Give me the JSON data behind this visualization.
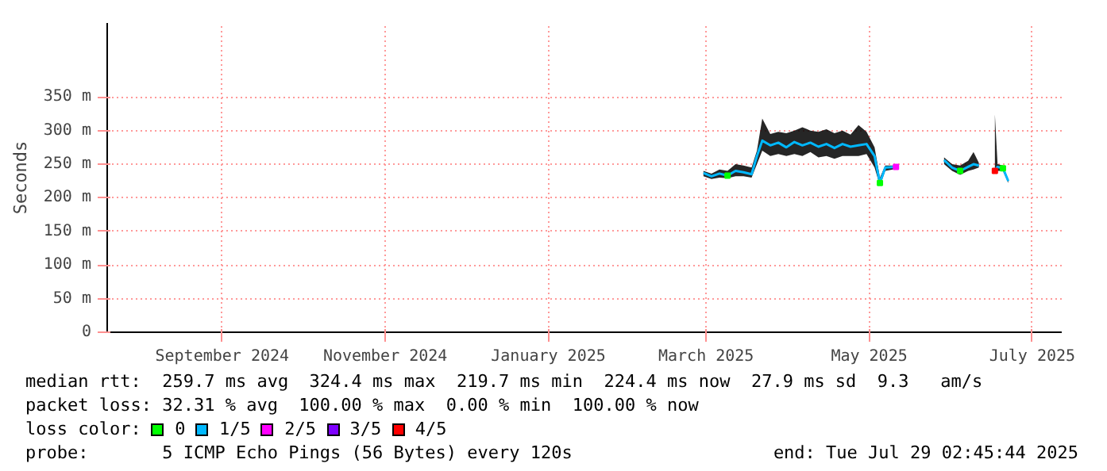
{
  "chart_data": {
    "type": "line",
    "ylabel": "Seconds",
    "legend_title": "loss color:",
    "legend": "bottom",
    "grid": true,
    "xlim": [
      "2024-07-20",
      "2025-07-12"
    ],
    "ylim": [
      0,
      460
    ],
    "xticks": [
      {
        "value": "2024-09-01",
        "label": "September 2024"
      },
      {
        "value": "2024-11-01",
        "label": "November 2024"
      },
      {
        "value": "2025-01-01",
        "label": "January 2025"
      },
      {
        "value": "2025-03-01",
        "label": "March 2025"
      },
      {
        "value": "2025-05-01",
        "label": "May 2025"
      },
      {
        "value": "2025-07-01",
        "label": "July 2025"
      }
    ],
    "yticks": [
      {
        "value": 0,
        "label": "0"
      },
      {
        "value": 50,
        "label": "50 m"
      },
      {
        "value": 100,
        "label": "100 m"
      },
      {
        "value": 150,
        "label": "150 m"
      },
      {
        "value": 200,
        "label": "200 m"
      },
      {
        "value": 250,
        "label": "250 m"
      },
      {
        "value": 300,
        "label": "300 m"
      },
      {
        "value": 350,
        "label": "350 m"
      }
    ],
    "x": [
      "2025-02-28",
      "2025-03-03",
      "2025-03-06",
      "2025-03-09",
      "2025-03-12",
      "2025-03-15",
      "2025-03-18",
      "2025-03-20",
      "2025-03-22",
      "2025-03-25",
      "2025-03-28",
      "2025-03-31",
      "2025-04-03",
      "2025-04-06",
      "2025-04-09",
      "2025-04-12",
      "2025-04-15",
      "2025-04-18",
      "2025-04-21",
      "2025-04-24",
      "2025-04-27",
      "2025-04-30",
      "2025-05-03",
      "2025-05-05",
      "2025-05-07",
      "2025-05-11",
      "2025-05-13",
      "2025-05-29",
      "2025-06-01",
      "2025-06-04",
      "2025-06-07",
      "2025-06-09",
      "2025-06-11",
      "2025-06-13",
      "2025-06-17",
      "2025-06-18",
      "2025-06-20",
      "2025-06-22"
    ],
    "series": [
      {
        "name": "0",
        "type": "scatter",
        "color": "#00ff00",
        "values": [
          null,
          null,
          null,
          233,
          null,
          null,
          null,
          null,
          null,
          null,
          null,
          null,
          null,
          null,
          null,
          null,
          null,
          null,
          null,
          null,
          null,
          null,
          null,
          222,
          null,
          null,
          null,
          null,
          null,
          240,
          null,
          null,
          null,
          null,
          null,
          null,
          244,
          null
        ]
      },
      {
        "name": "1/5",
        "color": "#00b8ff",
        "values": [
          237,
          232,
          236,
          233,
          240,
          238,
          235,
          262,
          285,
          278,
          282,
          275,
          283,
          278,
          282,
          276,
          280,
          274,
          280,
          276,
          278,
          280,
          262,
          222,
          245,
          246,
          null,
          256,
          245,
          240,
          246,
          250,
          248,
          null,
          240,
          246,
          244,
          225
        ],
        "lower": [
          232,
          228,
          230,
          229,
          232,
          232,
          230,
          250,
          270,
          262,
          265,
          262,
          265,
          262,
          268,
          260,
          262,
          258,
          262,
          262,
          262,
          265,
          245,
          218,
          240,
          243,
          null,
          250,
          240,
          234,
          240,
          242,
          245,
          null,
          238,
          240,
          240,
          222
        ],
        "upper": [
          240,
          236,
          242,
          240,
          250,
          248,
          245,
          270,
          318,
          295,
          298,
          296,
          300,
          305,
          300,
          298,
          302,
          296,
          300,
          294,
          308,
          298,
          275,
          230,
          248,
          248,
          null,
          260,
          250,
          248,
          255,
          268,
          252,
          null,
          324,
          250,
          248,
          228
        ]
      },
      {
        "name": "2/5",
        "type": "scatter",
        "color": "#ff00ff",
        "values": [
          null,
          null,
          null,
          null,
          null,
          null,
          null,
          null,
          null,
          null,
          null,
          null,
          null,
          null,
          null,
          null,
          null,
          null,
          null,
          null,
          null,
          null,
          null,
          null,
          null,
          246,
          null,
          null,
          null,
          null,
          null,
          null,
          null,
          null,
          null,
          null,
          null,
          null
        ]
      },
      {
        "name": "3/5",
        "type": "scatter",
        "color": "#7e00ff",
        "values": [
          null,
          null,
          null,
          null,
          null,
          null,
          null,
          null,
          null,
          null,
          null,
          null,
          null,
          null,
          null,
          null,
          null,
          null,
          null,
          null,
          null,
          null,
          null,
          null,
          null,
          null,
          null,
          null,
          null,
          null,
          null,
          null,
          null,
          null,
          null,
          null,
          null,
          null
        ]
      },
      {
        "name": "4/5",
        "type": "scatter",
        "color": "#ff0000",
        "values": [
          null,
          null,
          null,
          null,
          null,
          null,
          null,
          null,
          null,
          null,
          null,
          null,
          null,
          null,
          null,
          null,
          null,
          null,
          null,
          null,
          null,
          null,
          null,
          null,
          null,
          null,
          null,
          null,
          null,
          null,
          null,
          null,
          null,
          null,
          240,
          null,
          null,
          null
        ]
      }
    ],
    "annotations": [
      "median rtt:  259.7 ms avg  324.4 ms max  219.7 ms min  224.4 ms now  27.9 ms sd  9.3   am/s",
      "packet loss: 32.31 % avg  100.00 % max  0.00 % min  100.00 % now",
      "probe:       5 ICMP Echo Pings (56 Bytes) every 120s",
      "end: Tue Jul 29 02:45:44 2025"
    ]
  }
}
